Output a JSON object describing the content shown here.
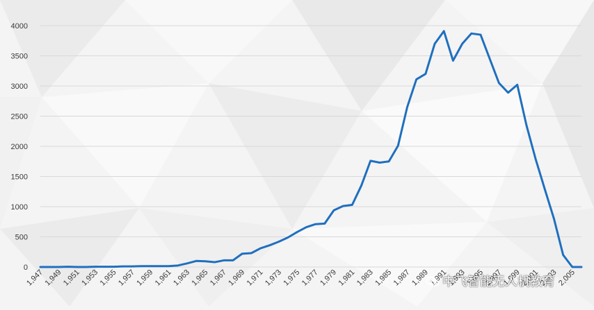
{
  "colors": {
    "background": "#f4f4f4",
    "series": "#1f6fbf",
    "grid": "#d8d8d8"
  },
  "watermark": {
    "text": "中飞智能无人机教育",
    "icon": "wechat-icon"
  },
  "chart_data": {
    "type": "line",
    "title": "",
    "xlabel": "",
    "ylabel": "",
    "ylim": [
      0,
      4000
    ],
    "yticks": [
      0,
      500,
      1000,
      1500,
      2000,
      2500,
      3000,
      3500,
      4000
    ],
    "ytick_labels": [
      "0",
      "500",
      "1000",
      "1500",
      "2000",
      "2500",
      "3000",
      "3500",
      "4000"
    ],
    "xlim": [
      1947,
      2006
    ],
    "grid": true,
    "legend": "none",
    "x_tick_labels": [
      "1,947",
      "1,949",
      "1,951",
      "1,953",
      "1,955",
      "1,957",
      "1,959",
      "1,961",
      "1,963",
      "1,965",
      "1,967",
      "1,969",
      "1,971",
      "1,973",
      "1,975",
      "1,977",
      "1,979",
      "1,981",
      "1,983",
      "1,985",
      "1,987",
      "1,989",
      "1,991",
      "1,993",
      "1,995",
      "1,997",
      "1,999",
      "2,001",
      "2,003",
      "2,005"
    ],
    "series": [
      {
        "x": [
          1947,
          1948,
          1949,
          1950,
          1951,
          1952,
          1953,
          1954,
          1955,
          1956,
          1957,
          1958,
          1959,
          1960,
          1961,
          1962,
          1963,
          1964,
          1965,
          1966,
          1967,
          1968,
          1969,
          1970,
          1971,
          1972,
          1973,
          1974,
          1975,
          1976,
          1977,
          1978,
          1979,
          1980,
          1981,
          1982,
          1983,
          1984,
          1985,
          1986,
          1987,
          1988,
          1989,
          1990,
          1991,
          1992,
          1993,
          1994,
          1995,
          1996,
          1997,
          1998,
          1999,
          2000,
          2001,
          2002,
          2003,
          2004,
          2005,
          2006
        ],
        "values": [
          0,
          0,
          0,
          5,
          0,
          0,
          5,
          5,
          5,
          10,
          10,
          15,
          15,
          15,
          15,
          25,
          60,
          100,
          95,
          80,
          110,
          110,
          220,
          230,
          310,
          360,
          420,
          490,
          580,
          660,
          710,
          720,
          940,
          1010,
          1030,
          1350,
          1760,
          1730,
          1750,
          2010,
          2650,
          3110,
          3200,
          3700,
          3910,
          3420,
          3700,
          3870,
          3850,
          3450,
          3050,
          2890,
          3020,
          2350,
          1790,
          1290,
          800,
          200,
          0,
          0
        ]
      }
    ]
  }
}
